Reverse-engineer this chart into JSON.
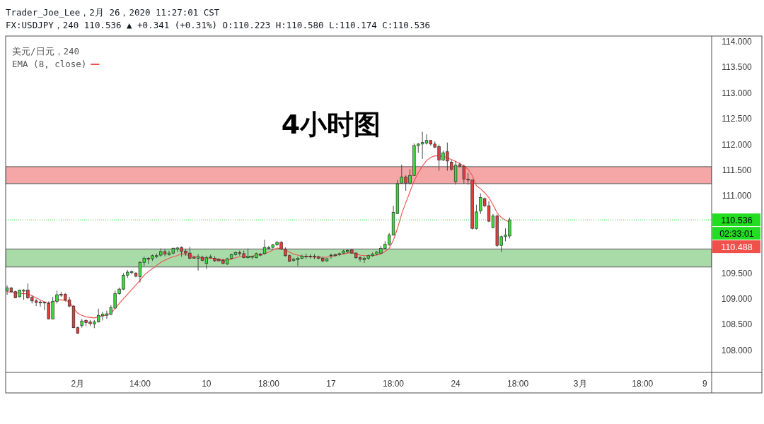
{
  "chart_data": {
    "type": "candlestick",
    "title": "4小时图",
    "subtitle": "FX:USDJPY，240 110.536 ▲ +0.341 (+0.31%) O:110.223 H:110.580 L:110.174 C:110.536",
    "annotations": [
      "Trader_Joe_Lee，2月 26，2020 11:27:01 CST",
      "02:33:01",
      "110.488"
    ],
    "legend_title": "美元/日元，240",
    "legend": "top left",
    "categories": [
      null,
      null,
      null,
      null,
      null,
      null,
      null,
      null,
      null,
      null,
      null,
      null,
      null,
      null,
      null,
      null,
      null,
      "2月",
      null,
      null,
      null,
      null,
      null,
      null,
      null,
      null,
      null,
      null,
      null,
      null,
      null,
      null,
      "14:00",
      null,
      null,
      null,
      null,
      null,
      null,
      null,
      null,
      null,
      null,
      null,
      null,
      null,
      null,
      null,
      "10",
      null,
      null,
      null,
      null,
      null,
      null,
      null,
      null,
      null,
      null,
      null,
      null,
      null,
      null,
      "18:00",
      null,
      null,
      null,
      null,
      null,
      null,
      null,
      null,
      null,
      null,
      null,
      null,
      null,
      null,
      "17",
      null,
      null,
      null,
      null,
      null,
      null,
      null,
      null,
      null,
      null,
      null,
      null,
      null,
      null,
      "18:00",
      null,
      null,
      null,
      null,
      null,
      null,
      null,
      null,
      null,
      null,
      null,
      null,
      null,
      null,
      "24",
      null,
      null,
      null,
      null,
      null,
      null,
      null,
      null,
      null,
      null,
      null,
      null,
      null,
      null,
      "18:00",
      null,
      null,
      null,
      null,
      null,
      null,
      null,
      null,
      null,
      null,
      null,
      null,
      null,
      null,
      "3月",
      null,
      null,
      null,
      null,
      null,
      null,
      null,
      null,
      null,
      null,
      null,
      null,
      null,
      null,
      "18:00",
      null,
      null,
      null,
      null,
      null,
      null,
      null,
      null,
      null,
      null,
      null,
      null,
      null,
      null,
      "9",
      null
    ],
    "ohlc": [
      [
        109.16,
        109.26,
        109.08,
        109.21
      ],
      [
        109.21,
        109.23,
        109.12,
        109.14
      ],
      [
        109.14,
        109.16,
        109.01,
        109.02
      ],
      [
        109.04,
        109.18,
        109.03,
        109.17
      ],
      [
        109.15,
        109.19,
        108.98,
        109.17
      ],
      [
        109.17,
        109.3,
        109.0,
        109.02
      ],
      [
        109.03,
        109.07,
        108.91,
        108.96
      ],
      [
        108.96,
        109.0,
        108.86,
        108.93
      ],
      [
        108.94,
        108.97,
        108.85,
        108.92
      ],
      [
        108.93,
        108.95,
        108.78,
        108.92
      ],
      [
        108.91,
        108.95,
        108.6,
        108.61
      ],
      [
        108.61,
        109.04,
        108.6,
        108.95
      ],
      [
        108.95,
        109.16,
        108.91,
        109.08
      ],
      [
        109.09,
        109.14,
        109.04,
        109.07
      ],
      [
        109.09,
        109.11,
        108.95,
        108.98
      ],
      [
        108.98,
        109.04,
        108.84,
        108.86
      ],
      [
        108.86,
        108.88,
        108.43,
        108.44
      ],
      [
        108.44,
        108.46,
        108.32,
        108.33
      ],
      [
        108.48,
        108.61,
        108.44,
        108.57
      ],
      [
        108.58,
        108.6,
        108.47,
        108.54
      ],
      [
        108.55,
        108.59,
        108.47,
        108.52
      ],
      [
        108.51,
        108.59,
        108.43,
        108.55
      ],
      [
        108.55,
        108.81,
        108.54,
        108.68
      ],
      [
        108.67,
        108.75,
        108.58,
        108.7
      ],
      [
        108.68,
        108.77,
        108.61,
        108.71
      ],
      [
        108.7,
        108.88,
        108.68,
        108.83
      ],
      [
        108.82,
        109.16,
        108.81,
        109.1
      ],
      [
        109.1,
        109.22,
        109.08,
        109.19
      ],
      [
        109.19,
        109.5,
        109.17,
        109.46
      ],
      [
        109.46,
        109.56,
        109.41,
        109.52
      ],
      [
        109.51,
        109.55,
        109.48,
        109.53
      ],
      [
        109.5,
        109.52,
        109.42,
        109.44
      ],
      [
        109.43,
        109.73,
        109.32,
        109.71
      ],
      [
        109.71,
        109.82,
        109.64,
        109.79
      ],
      [
        109.79,
        109.81,
        109.68,
        109.77
      ],
      [
        109.78,
        109.86,
        109.74,
        109.84
      ],
      [
        109.82,
        109.88,
        109.79,
        109.84
      ],
      [
        109.85,
        109.98,
        109.82,
        109.92
      ],
      [
        109.92,
        109.97,
        109.83,
        109.87
      ],
      [
        109.86,
        109.94,
        109.84,
        109.89
      ],
      [
        109.89,
        110.0,
        109.87,
        109.98
      ],
      [
        109.97,
        110.01,
        109.91,
        109.99
      ],
      [
        110.0,
        110.02,
        109.82,
        109.92
      ],
      [
        109.93,
        109.96,
        109.84,
        109.89
      ],
      [
        109.89,
        110.01,
        109.77,
        109.79
      ],
      [
        109.81,
        109.82,
        109.78,
        109.79
      ],
      [
        109.79,
        109.87,
        109.55,
        109.82
      ],
      [
        109.81,
        109.84,
        109.73,
        109.75
      ],
      [
        109.69,
        109.84,
        109.58,
        109.8
      ],
      [
        109.8,
        109.86,
        109.78,
        109.82
      ],
      [
        109.79,
        109.83,
        109.72,
        109.74
      ],
      [
        109.76,
        109.79,
        109.73,
        109.74
      ],
      [
        109.75,
        109.78,
        109.67,
        109.69
      ],
      [
        109.68,
        109.8,
        109.66,
        109.78
      ],
      [
        109.79,
        109.88,
        109.77,
        109.86
      ],
      [
        109.86,
        109.92,
        109.84,
        109.9
      ],
      [
        109.9,
        109.94,
        109.84,
        109.88
      ],
      [
        109.88,
        109.94,
        109.79,
        109.8
      ],
      [
        109.8,
        109.98,
        109.78,
        109.83
      ],
      [
        109.81,
        109.84,
        109.77,
        109.83
      ],
      [
        109.8,
        109.9,
        109.79,
        109.88
      ],
      [
        109.87,
        109.89,
        109.83,
        109.85
      ],
      [
        109.88,
        110.15,
        109.86,
        110.0
      ],
      [
        109.98,
        110.03,
        109.96,
        110.0
      ],
      [
        110.0,
        110.07,
        109.98,
        110.05
      ],
      [
        110.05,
        110.12,
        110.03,
        110.1
      ],
      [
        110.1,
        110.12,
        109.95,
        109.97
      ],
      [
        109.97,
        110.0,
        109.82,
        109.84
      ],
      [
        109.84,
        109.86,
        109.72,
        109.73
      ],
      [
        109.75,
        109.8,
        109.72,
        109.77
      ],
      [
        109.76,
        109.82,
        109.64,
        109.79
      ],
      [
        109.79,
        109.86,
        109.77,
        109.83
      ],
      [
        109.83,
        109.88,
        109.78,
        109.82
      ],
      [
        109.83,
        109.87,
        109.78,
        109.82
      ],
      [
        109.83,
        109.87,
        109.77,
        109.82
      ],
      [
        109.82,
        109.84,
        109.77,
        109.79
      ],
      [
        109.79,
        109.81,
        109.71,
        109.74
      ],
      [
        109.74,
        109.79,
        109.72,
        109.78
      ],
      [
        109.84,
        109.88,
        109.78,
        109.85
      ],
      [
        109.86,
        109.88,
        109.82,
        109.84
      ],
      [
        109.86,
        109.9,
        109.83,
        109.88
      ],
      [
        109.89,
        109.95,
        109.88,
        109.93
      ],
      [
        109.91,
        109.96,
        109.89,
        109.94
      ],
      [
        109.95,
        109.97,
        109.88,
        109.89
      ],
      [
        109.89,
        109.91,
        109.78,
        109.8
      ],
      [
        109.8,
        109.83,
        109.72,
        109.77
      ],
      [
        109.76,
        109.82,
        109.7,
        109.79
      ],
      [
        109.79,
        109.86,
        109.76,
        109.84
      ],
      [
        109.84,
        109.9,
        109.82,
        109.87
      ],
      [
        109.87,
        109.93,
        109.85,
        109.91
      ],
      [
        109.89,
        110.03,
        109.87,
        109.98
      ],
      [
        109.98,
        110.12,
        109.96,
        110.06
      ],
      [
        110.06,
        110.28,
        110.03,
        110.24
      ],
      [
        110.24,
        110.81,
        110.23,
        110.68
      ],
      [
        110.66,
        111.31,
        110.65,
        111.24
      ],
      [
        111.25,
        111.61,
        111.24,
        111.37
      ],
      [
        111.37,
        111.4,
        111.1,
        111.25
      ],
      [
        111.25,
        111.52,
        111.23,
        111.4
      ],
      [
        111.4,
        112.02,
        111.39,
        111.98
      ],
      [
        111.98,
        112.03,
        111.84,
        112.01
      ],
      [
        112.01,
        112.25,
        111.72,
        112.04
      ],
      [
        112.03,
        112.2,
        112.0,
        112.08
      ],
      [
        112.08,
        112.09,
        111.98,
        112.01
      ],
      [
        112.01,
        112.06,
        111.93,
        111.95
      ],
      [
        111.96,
        112.0,
        111.49,
        111.7
      ],
      [
        111.7,
        111.88,
        111.68,
        111.84
      ],
      [
        111.86,
        112.04,
        111.49,
        111.68
      ],
      [
        111.66,
        111.7,
        111.49,
        111.52
      ],
      [
        111.28,
        111.68,
        111.22,
        111.6
      ],
      [
        111.61,
        111.65,
        111.56,
        111.58
      ],
      [
        111.58,
        111.61,
        111.24,
        111.33
      ],
      [
        111.33,
        111.45,
        111.22,
        111.31
      ],
      [
        111.31,
        111.32,
        110.35,
        110.37
      ],
      [
        110.37,
        110.83,
        110.35,
        110.69
      ],
      [
        110.71,
        111.05,
        110.65,
        110.97
      ],
      [
        110.95,
        110.97,
        110.78,
        110.81
      ],
      [
        110.81,
        110.9,
        110.49,
        110.51
      ],
      [
        110.39,
        110.65,
        110.37,
        110.61
      ],
      [
        110.61,
        110.64,
        110.01,
        110.04
      ],
      [
        110.04,
        110.23,
        109.91,
        110.21
      ],
      [
        110.21,
        110.37,
        110.12,
        110.24
      ],
      [
        110.223,
        110.58,
        110.174,
        110.536
      ],
      null,
      null,
      null,
      null,
      null,
      null,
      null,
      null,
      null,
      null,
      null,
      null,
      null,
      null,
      null,
      null,
      null,
      null,
      null,
      null,
      null,
      null,
      null,
      null,
      null,
      null,
      null,
      null,
      null,
      null,
      null,
      null,
      null,
      null,
      null,
      null,
      null,
      null,
      null,
      null,
      null,
      null,
      null,
      null,
      null,
      null,
      null,
      null
    ],
    "colors": [
      "#3cdc3c",
      "#e63c3c",
      "#e63c3c",
      "#3cdc3c",
      "#3cdc3c",
      "#e63c3c",
      "#e63c3c",
      "#e63c3c",
      "#e63c3c",
      "#e63c3c",
      "#e63c3c",
      "#3cdc3c",
      "#3cdc3c",
      "#e63c3c",
      "#e63c3c",
      "#e63c3c",
      "#e63c3c",
      "#e63c3c",
      "#3cdc3c",
      "#e63c3c",
      "#e63c3c",
      "#3cdc3c",
      "#3cdc3c",
      "#3cdc3c",
      "#3cdc3c",
      "#3cdc3c",
      "#3cdc3c",
      "#3cdc3c",
      "#3cdc3c",
      "#3cdc3c",
      "#3cdc3c",
      "#e63c3c",
      "#3cdc3c",
      "#3cdc3c",
      "#e63c3c",
      "#3cdc3c",
      "#3cdc3c",
      "#3cdc3c",
      "#e63c3c",
      "#3cdc3c",
      "#3cdc3c",
      "#3cdc3c",
      "#e63c3c",
      "#e63c3c",
      "#e63c3c",
      "#e63c3c",
      "#3cdc3c",
      "#e63c3c",
      "#3cdc3c",
      "#3cdc3c",
      "#e63c3c",
      "#e63c3c",
      "#e63c3c",
      "#3cdc3c",
      "#3cdc3c",
      "#3cdc3c",
      "#e63c3c",
      "#e63c3c",
      "#3cdc3c",
      "#3cdc3c",
      "#3cdc3c",
      "#e63c3c",
      "#3cdc3c",
      "#3cdc3c",
      "#3cdc3c",
      "#3cdc3c",
      "#e63c3c",
      "#e63c3c",
      "#e63c3c",
      "#3cdc3c",
      "#3cdc3c",
      "#3cdc3c",
      "#e63c3c",
      "#e63c3c",
      "#e63c3c",
      "#e63c3c",
      "#e63c3c",
      "#3cdc3c",
      "#3cdc3c",
      "#e63c3c",
      "#3cdc3c",
      "#3cdc3c",
      "#3cdc3c",
      "#e63c3c",
      "#e63c3c",
      "#e63c3c",
      "#3cdc3c",
      "#3cdc3c",
      "#3cdc3c",
      "#3cdc3c",
      "#3cdc3c",
      "#3cdc3c",
      "#3cdc3c",
      "#3cdc3c",
      "#3cdc3c",
      "#3cdc3c",
      "#e63c3c",
      "#3cdc3c",
      "#3cdc3c",
      "#3cdc3c",
      "#3cdc3c",
      "#3cdc3c",
      "#e63c3c",
      "#e63c3c",
      "#e63c3c",
      "#3cdc3c",
      "#e63c3c",
      "#e63c3c",
      "#3cdc3c",
      "#e63c3c",
      "#e63c3c",
      "#e63c3c",
      "#e63c3c",
      "#3cdc3c",
      "#3cdc3c",
      "#e63c3c",
      "#e63c3c",
      "#3cdc3c",
      "#e63c3c",
      "#3cdc3c",
      "#3cdc3c",
      "#3cdc3c",
      null,
      null,
      null,
      null,
      null,
      null,
      null,
      null,
      null,
      null,
      null,
      null,
      null,
      null,
      null,
      null,
      null,
      null,
      null,
      null,
      null,
      null,
      null,
      null,
      null,
      null,
      null,
      null,
      null,
      null,
      null,
      null,
      null,
      null,
      null,
      null,
      null,
      null,
      null,
      null,
      null,
      null,
      null,
      null,
      null,
      null,
      null,
      null
    ],
    "series": [
      {
        "type": "line",
        "name": "EMA (8, close)",
        "color": "#f0504a",
        "values": [
          109.14,
          109.13,
          109.12,
          109.11,
          109.1,
          109.1,
          109.06,
          109.02,
          108.98,
          108.94,
          108.92,
          108.94,
          108.98,
          108.98,
          108.97,
          108.94,
          108.82,
          108.72,
          108.68,
          108.65,
          108.64,
          108.63,
          108.65,
          108.67,
          108.69,
          108.72,
          108.81,
          108.91,
          109.0,
          109.09,
          109.18,
          109.27,
          109.36,
          109.46,
          109.53,
          109.59,
          109.65,
          109.71,
          109.75,
          109.79,
          109.82,
          109.84,
          109.88,
          109.86,
          109.84,
          109.83,
          109.81,
          109.8,
          109.79,
          109.79,
          109.78,
          109.77,
          109.76,
          109.75,
          109.77,
          109.8,
          109.82,
          109.82,
          109.83,
          109.83,
          109.85,
          109.86,
          109.88,
          109.91,
          109.95,
          109.99,
          109.97,
          109.95,
          109.91,
          109.87,
          109.85,
          109.83,
          109.82,
          109.82,
          109.81,
          109.81,
          109.81,
          109.81,
          109.82,
          109.84,
          109.86,
          109.87,
          109.89,
          109.9,
          109.87,
          109.85,
          109.84,
          109.84,
          109.84,
          109.85,
          109.87,
          109.92,
          109.98,
          110.14,
          110.37,
          110.65,
          110.87,
          111.08,
          111.29,
          111.45,
          111.58,
          111.69,
          111.75,
          111.78,
          111.78,
          111.77,
          111.74,
          111.71,
          111.67,
          111.63,
          111.58,
          111.52,
          111.4,
          111.2,
          111.14,
          111.06,
          110.97,
          110.83,
          110.67,
          110.58,
          110.53,
          110.49,
          null,
          null,
          null,
          null,
          null,
          null,
          null,
          null,
          null,
          null,
          null,
          null,
          null,
          null,
          null,
          null,
          null,
          null,
          null,
          null,
          null,
          null,
          null,
          null,
          null,
          null,
          null,
          null,
          null,
          null,
          null,
          null,
          null,
          null,
          null,
          null,
          null,
          null,
          null,
          null,
          null,
          null,
          null,
          null,
          null,
          null,
          null,
          null
        ]
      }
    ],
    "ylim": [
      107.57,
      114.11
    ],
    "yticks": [
      {
        "value": 108,
        "label": "108.000"
      },
      {
        "value": 108.5,
        "label": "108.500"
      },
      {
        "value": 109,
        "label": "109.000"
      },
      {
        "value": 109.5,
        "label": "109.500"
      },
      {
        "value": 111,
        "label": "111.000"
      },
      {
        "value": 111.5,
        "label": "111.500"
      },
      {
        "value": 112,
        "label": "112.000"
      },
      {
        "value": 112.5,
        "label": "112.500"
      },
      {
        "value": 113,
        "label": "113.000"
      },
      {
        "value": 113.5,
        "label": "113.500"
      },
      {
        "value": 114,
        "label": "114.000"
      }
    ],
    "ref_lines": [
      {
        "axis": "y",
        "value": 110.536,
        "label": "110.536",
        "color": "#22dd22",
        "line_style": "dotted"
      }
    ],
    "bands": [
      {
        "axis": "y",
        "from": 111.24,
        "to": 111.57,
        "color": "#f5a6a6"
      },
      {
        "axis": "y",
        "from": 109.62,
        "to": 109.97,
        "color": "#a9dba9"
      }
    ]
  }
}
